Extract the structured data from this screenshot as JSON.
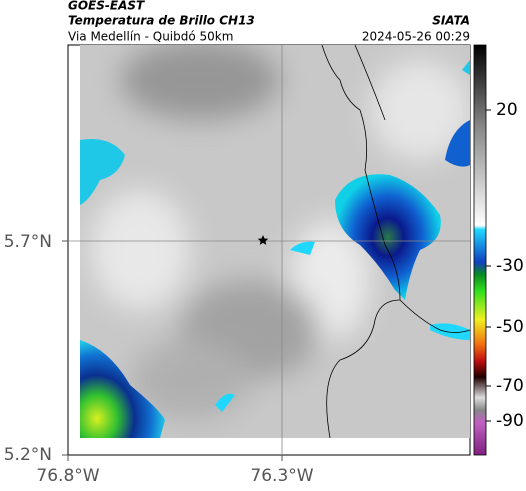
{
  "header": {
    "title": "GOES-EAST",
    "subtitle": "Temperatura de Brillo CH13",
    "source": "SIATA",
    "region": "Via Medellín - Quibdó 50km",
    "timestamp": "2024-05-26 00:29"
  },
  "map": {
    "lat_labels": [
      "5.7°N",
      "5.2°N"
    ],
    "lon_labels": [
      "76.8°W",
      "76.3°W"
    ]
  },
  "colorbar": {
    "ticks": [
      20,
      -30,
      -50,
      -70,
      -90
    ]
  }
}
